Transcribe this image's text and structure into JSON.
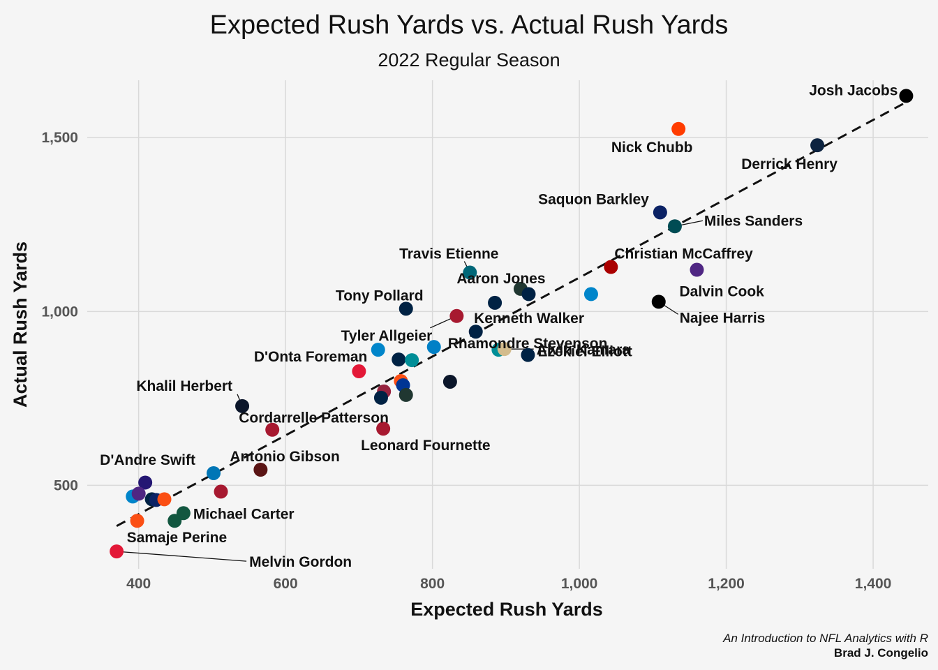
{
  "chart_data": {
    "type": "scatter",
    "title": "Expected Rush Yards vs. Actual Rush Yards",
    "subtitle": "2022 Regular Season",
    "xlabel": "Expected Rush Yards",
    "ylabel": "Actual Rush Yards",
    "xlim": [
      330,
      1475
    ],
    "ylim": [
      260,
      1665
    ],
    "x_ticks": [
      400,
      600,
      800,
      1000,
      1200,
      1400
    ],
    "x_tick_labels": [
      "400",
      "600",
      "800",
      "1,000",
      "1,200",
      "1,400"
    ],
    "y_ticks": [
      500,
      1000,
      1500
    ],
    "y_tick_labels": [
      "500",
      "1,000",
      "1,500"
    ],
    "grid": true,
    "trend_line": {
      "style": "dashed",
      "x1": 370,
      "y1": 383,
      "x2": 1445,
      "y2": 1602
    },
    "points": [
      {
        "x": 1445,
        "y": 1620,
        "color": "#000000",
        "label": "Josh Jacobs"
      },
      {
        "x": 1135,
        "y": 1525,
        "color": "#ff3c00",
        "label": "Nick Chubb"
      },
      {
        "x": 1324,
        "y": 1478,
        "color": "#0c2340",
        "label": "Derrick Henry"
      },
      {
        "x": 1110,
        "y": 1285,
        "color": "#0b2265",
        "label": "Saquon Barkley"
      },
      {
        "x": 1130,
        "y": 1245,
        "color": "#004c54",
        "label": "Miles Sanders"
      },
      {
        "x": 1043,
        "y": 1128,
        "color": "#aa0000",
        "label": "Christian McCaffrey"
      },
      {
        "x": 1160,
        "y": 1120,
        "color": "#4f2683",
        "label": "Dalvin Cook"
      },
      {
        "x": 851,
        "y": 1112,
        "color": "#006778",
        "label": "Travis Etienne"
      },
      {
        "x": 920,
        "y": 1065,
        "color": "#203731",
        "label": "Aaron Jones"
      },
      {
        "x": 931,
        "y": 1050,
        "color": "#002244",
        "label": ""
      },
      {
        "x": 1016,
        "y": 1050,
        "color": "#0085ca",
        "label": ""
      },
      {
        "x": 885,
        "y": 1025,
        "color": "#002244",
        "label": "Kenneth Walker"
      },
      {
        "x": 1108,
        "y": 1028,
        "color": "#000000",
        "label": "Najee Harris"
      },
      {
        "x": 764,
        "y": 1008,
        "color": "#002244",
        "label": "Tony Pollard"
      },
      {
        "x": 833,
        "y": 987,
        "color": "#a71930",
        "label": "Tyler Allgeier"
      },
      {
        "x": 859,
        "y": 942,
        "color": "#002244",
        "label": "Rhamondre Stevenson"
      },
      {
        "x": 726,
        "y": 890,
        "color": "#0085ca",
        "label": ""
      },
      {
        "x": 802,
        "y": 898,
        "color": "#0080c6",
        "label": ""
      },
      {
        "x": 890,
        "y": 890,
        "color": "#008e97",
        "label": ""
      },
      {
        "x": 898,
        "y": 892,
        "color": "#d3bc8d",
        "label": "Alvin Kamara"
      },
      {
        "x": 930,
        "y": 875,
        "color": "#002244",
        "label": "Ezekiel Elliott"
      },
      {
        "x": 754,
        "y": 862,
        "color": "#002244",
        "label": ""
      },
      {
        "x": 772,
        "y": 860,
        "color": "#008e97",
        "label": ""
      },
      {
        "x": 700,
        "y": 828,
        "color": "#e31837",
        "label": "D'Onta Foreman"
      },
      {
        "x": 824,
        "y": 798,
        "color": "#0b162a",
        "label": ""
      },
      {
        "x": 757,
        "y": 800,
        "color": "#fb4f14",
        "label": ""
      },
      {
        "x": 760,
        "y": 788,
        "color": "#003594",
        "label": ""
      },
      {
        "x": 734,
        "y": 770,
        "color": "#97233f",
        "label": ""
      },
      {
        "x": 730,
        "y": 752,
        "color": "#002244",
        "label": ""
      },
      {
        "x": 764,
        "y": 760,
        "color": "#203731",
        "label": ""
      },
      {
        "x": 541,
        "y": 728,
        "color": "#0b162a",
        "label": "Khalil Herbert"
      },
      {
        "x": 582,
        "y": 660,
        "color": "#a71930",
        "label": "Cordarrelle Patterson"
      },
      {
        "x": 733,
        "y": 663,
        "color": "#a71930",
        "label": "Leonard Fournette"
      },
      {
        "x": 502,
        "y": 535,
        "color": "#0076b6",
        "label": "D'Andre Swift"
      },
      {
        "x": 566,
        "y": 545,
        "color": "#5a1414",
        "label": "Antonio Gibson"
      },
      {
        "x": 512,
        "y": 482,
        "color": "#a71930",
        "label": ""
      },
      {
        "x": 409,
        "y": 508,
        "color": "#241773",
        "label": ""
      },
      {
        "x": 392,
        "y": 468,
        "color": "#0085ca",
        "label": ""
      },
      {
        "x": 400,
        "y": 476,
        "color": "#4f2683",
        "label": ""
      },
      {
        "x": 418,
        "y": 460,
        "color": "#002244",
        "label": ""
      },
      {
        "x": 424,
        "y": 458,
        "color": "#0b2265",
        "label": ""
      },
      {
        "x": 435,
        "y": 460,
        "color": "#fb4f14",
        "label": ""
      },
      {
        "x": 461,
        "y": 420,
        "color": "#125740",
        "label": "Michael Carter"
      },
      {
        "x": 449,
        "y": 398,
        "color": "#125740",
        "label": ""
      },
      {
        "x": 398,
        "y": 398,
        "color": "#fb4f14",
        "label": "Samaje Perine"
      },
      {
        "x": 370,
        "y": 310,
        "color": "#e31837",
        "label": "Melvin Gordon"
      }
    ]
  },
  "caption": {
    "line1": "An Introduction to NFL Analytics with R",
    "line2": "Brad J. Congelio"
  }
}
